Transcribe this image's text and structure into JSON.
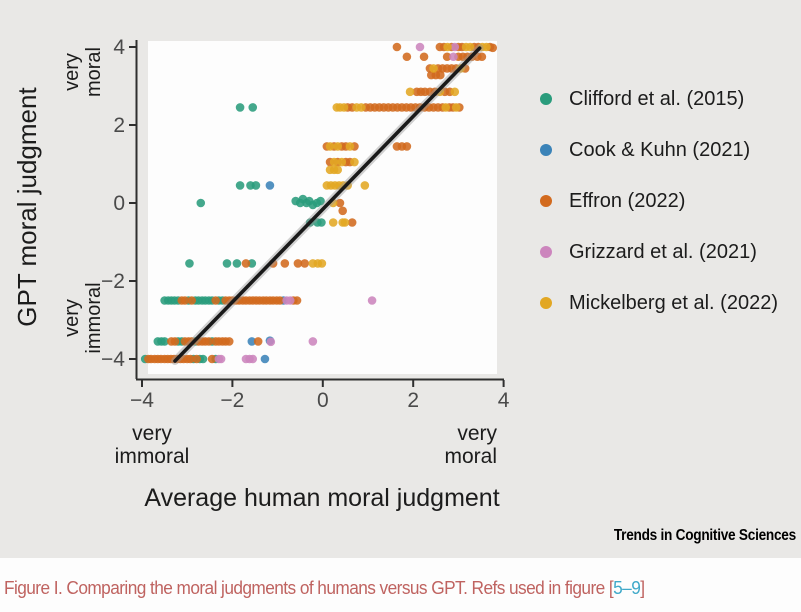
{
  "figure": {
    "caption_prefix": "Figure I. Comparing the moral judgments of humans versus GPT. Refs used in figure [",
    "caption_ref": "5–9",
    "caption_suffix": "]",
    "journal_logo": "Trends in Cognitive Sciences"
  },
  "colors": {
    "background": "#e9e8e6",
    "panel": "#fdfdfd",
    "axis": "#2f2f2f",
    "tick_text": "#4a4a4a",
    "trend_line": "#1a1a1a",
    "trend_halo": "#9a9a9a",
    "caption_text": "#bf6360",
    "caption_link": "#3fa9c9"
  },
  "chart_data": {
    "type": "scatter",
    "title": "",
    "xlabel": "Average human moral judgment",
    "ylabel": "GPT moral judgment",
    "x_ticks": [
      "-4",
      "-2",
      "0",
      "2",
      "4"
    ],
    "x_tick_values": [
      -4,
      -2,
      0,
      2,
      4
    ],
    "y_ticks": [
      "4",
      "2",
      "0",
      "-2",
      "-4"
    ],
    "y_tick_values": [
      4,
      2,
      0,
      -2,
      -4
    ],
    "xlim": [
      -4.1,
      3.95
    ],
    "ylim": [
      -4.4,
      4.15
    ],
    "x_axis_anchor_labels": {
      "left": [
        "very",
        "immoral"
      ],
      "right": [
        "very",
        "moral"
      ]
    },
    "y_axis_anchor_labels": {
      "top": [
        "very",
        "moral"
      ],
      "bottom": [
        "very",
        "immoral"
      ]
    },
    "grid": false,
    "legend_position": "right",
    "trend_line": {
      "x1": -3.27,
      "y1": -4.05,
      "x2": 3.47,
      "y2": 3.97
    },
    "series": [
      {
        "name": "Clifford et al. (2015)",
        "color": "#2a9c7c",
        "points": [
          [
            -1.83,
            2.45
          ],
          [
            -1.55,
            2.45
          ],
          [
            -1.83,
            0.45
          ],
          [
            -1.6,
            0.45
          ],
          [
            -1.48,
            0.45
          ],
          [
            -2.7,
            0.0
          ],
          [
            -0.6,
            0.05
          ],
          [
            -0.5,
            0.0
          ],
          [
            -0.44,
            0.1
          ],
          [
            -0.36,
            0.0
          ],
          [
            -0.3,
            0.05
          ],
          [
            -0.22,
            -0.05
          ],
          [
            -0.13,
            0.0
          ],
          [
            -0.05,
            0.05
          ],
          [
            -0.28,
            -0.5
          ],
          [
            -0.12,
            -0.5
          ],
          [
            -0.03,
            -0.5
          ],
          [
            -2.95,
            -1.55
          ],
          [
            -2.12,
            -1.55
          ],
          [
            -1.9,
            -1.55
          ],
          [
            -1.57,
            -1.55
          ],
          [
            -3.5,
            -2.5
          ],
          [
            -3.42,
            -2.5
          ],
          [
            -3.35,
            -2.5
          ],
          [
            -3.28,
            -2.5
          ],
          [
            -3.2,
            -2.5
          ],
          [
            -2.97,
            -2.5
          ],
          [
            -2.82,
            -2.5
          ],
          [
            -2.75,
            -2.5
          ],
          [
            -2.67,
            -2.5
          ],
          [
            -2.6,
            -2.5
          ],
          [
            -2.52,
            -2.5
          ],
          [
            -2.45,
            -2.5
          ],
          [
            -2.3,
            -2.5
          ],
          [
            -2.22,
            -2.5
          ],
          [
            -3.65,
            -3.55
          ],
          [
            -3.57,
            -3.55
          ],
          [
            -3.5,
            -3.55
          ],
          [
            -3.2,
            -3.55
          ],
          [
            -3.12,
            -3.55
          ],
          [
            -2.82,
            -3.55
          ],
          [
            -2.45,
            -3.55
          ],
          [
            -3.93,
            -4.0
          ],
          [
            -2.86,
            -4.0
          ],
          [
            -2.72,
            -4.0
          ],
          [
            -2.65,
            -4.0
          ],
          [
            -2.37,
            -4.0
          ]
        ]
      },
      {
        "name": "Cook & Kuhn (2021)",
        "color": "#3b83b8",
        "points": [
          [
            -1.17,
            0.45
          ],
          [
            -0.87,
            -2.5
          ],
          [
            -1.57,
            -3.55
          ],
          [
            -1.17,
            -3.53
          ],
          [
            -1.28,
            -4.0
          ]
        ]
      },
      {
        "name": "Effron (2022)",
        "color": "#d26a1e",
        "points": [
          [
            1.64,
            4.0
          ],
          [
            2.59,
            4.0
          ],
          [
            2.68,
            4.0
          ],
          [
            2.85,
            4.0
          ],
          [
            3.0,
            4.0
          ],
          [
            3.08,
            4.0
          ],
          [
            3.35,
            4.0
          ],
          [
            3.44,
            4.0
          ],
          [
            3.7,
            4.0
          ],
          [
            3.76,
            3.98
          ],
          [
            1.86,
            3.75
          ],
          [
            2.24,
            3.75
          ],
          [
            2.75,
            3.75
          ],
          [
            3.0,
            3.75
          ],
          [
            3.1,
            3.75
          ],
          [
            3.2,
            3.75
          ],
          [
            3.3,
            3.75
          ],
          [
            3.42,
            3.75
          ],
          [
            3.52,
            3.75
          ],
          [
            2.37,
            3.45
          ],
          [
            2.55,
            3.45
          ],
          [
            2.65,
            3.45
          ],
          [
            2.75,
            3.45
          ],
          [
            2.85,
            3.45
          ],
          [
            2.95,
            3.45
          ],
          [
            3.15,
            3.45
          ],
          [
            2.4,
            3.28
          ],
          [
            2.5,
            3.28
          ],
          [
            2.6,
            3.28
          ],
          [
            2.08,
            2.85
          ],
          [
            2.17,
            2.85
          ],
          [
            2.26,
            2.85
          ],
          [
            2.37,
            2.85
          ],
          [
            2.48,
            2.85
          ],
          [
            2.7,
            2.85
          ],
          [
            2.81,
            2.85
          ],
          [
            0.55,
            2.45
          ],
          [
            0.65,
            2.45
          ],
          [
            0.95,
            2.45
          ],
          [
            1.05,
            2.45
          ],
          [
            1.15,
            2.45
          ],
          [
            1.25,
            2.45
          ],
          [
            1.35,
            2.45
          ],
          [
            1.45,
            2.45
          ],
          [
            1.55,
            2.45
          ],
          [
            1.65,
            2.45
          ],
          [
            1.75,
            2.45
          ],
          [
            1.85,
            2.45
          ],
          [
            1.95,
            2.45
          ],
          [
            2.05,
            2.45
          ],
          [
            2.15,
            2.45
          ],
          [
            2.25,
            2.45
          ],
          [
            2.35,
            2.45
          ],
          [
            2.45,
            2.45
          ],
          [
            2.55,
            2.45
          ],
          [
            2.65,
            2.45
          ],
          [
            2.8,
            2.45
          ],
          [
            2.88,
            2.45
          ],
          [
            3.02,
            2.45
          ],
          [
            0.09,
            1.45
          ],
          [
            0.25,
            1.45
          ],
          [
            0.42,
            1.45
          ],
          [
            0.51,
            1.45
          ],
          [
            0.7,
            1.45
          ],
          [
            1.64,
            1.45
          ],
          [
            1.75,
            1.45
          ],
          [
            1.86,
            1.45
          ],
          [
            0.16,
            1.05
          ],
          [
            0.33,
            1.05
          ],
          [
            0.51,
            1.05
          ],
          [
            0.6,
            1.05
          ],
          [
            0.38,
            0.0
          ],
          [
            0.44,
            -0.2
          ],
          [
            0.65,
            -0.5
          ],
          [
            -1.7,
            -1.55
          ],
          [
            -1.1,
            -1.55
          ],
          [
            -0.84,
            -1.55
          ],
          [
            -0.55,
            -1.55
          ],
          [
            -0.4,
            -1.55
          ],
          [
            -3.12,
            -2.5
          ],
          [
            -3.05,
            -2.5
          ],
          [
            -2.9,
            -2.5
          ],
          [
            -2.37,
            -2.5
          ],
          [
            -2.15,
            -2.5
          ],
          [
            -2.07,
            -2.5
          ],
          [
            -2.0,
            -2.5
          ],
          [
            -1.92,
            -2.5
          ],
          [
            -1.85,
            -2.5
          ],
          [
            -1.77,
            -2.5
          ],
          [
            -1.7,
            -2.5
          ],
          [
            -1.62,
            -2.5
          ],
          [
            -1.55,
            -2.5
          ],
          [
            -1.47,
            -2.5
          ],
          [
            -1.4,
            -2.5
          ],
          [
            -1.32,
            -2.5
          ],
          [
            -1.25,
            -2.5
          ],
          [
            -1.17,
            -2.5
          ],
          [
            -1.1,
            -2.5
          ],
          [
            -1.02,
            -2.5
          ],
          [
            -0.95,
            -2.5
          ],
          [
            -0.65,
            -2.5
          ],
          [
            -0.57,
            -2.5
          ],
          [
            -3.35,
            -3.55
          ],
          [
            -3.27,
            -3.55
          ],
          [
            -3.05,
            -3.55
          ],
          [
            -2.97,
            -3.55
          ],
          [
            -2.9,
            -3.55
          ],
          [
            -2.75,
            -3.55
          ],
          [
            -2.67,
            -3.55
          ],
          [
            -2.6,
            -3.55
          ],
          [
            -2.52,
            -3.55
          ],
          [
            -2.37,
            -3.55
          ],
          [
            -2.3,
            -3.55
          ],
          [
            -2.22,
            -3.55
          ],
          [
            -2.15,
            -3.55
          ],
          [
            -2.07,
            -3.55
          ],
          [
            -1.43,
            -3.55
          ],
          [
            -3.86,
            -4.0
          ],
          [
            -3.8,
            -4.0
          ],
          [
            -3.72,
            -4.0
          ],
          [
            -3.65,
            -4.0
          ],
          [
            -3.58,
            -4.0
          ],
          [
            -3.5,
            -4.0
          ],
          [
            -3.43,
            -4.0
          ],
          [
            -3.36,
            -4.0
          ],
          [
            -3.29,
            -4.0
          ],
          [
            -3.22,
            -4.0
          ],
          [
            -3.15,
            -4.0
          ],
          [
            -3.08,
            -4.0
          ],
          [
            -3.0,
            -4.0
          ],
          [
            -2.93,
            -4.0
          ],
          [
            -2.79,
            -4.0
          ],
          [
            -2.45,
            -4.0
          ]
        ]
      },
      {
        "name": "Grizzard et al. (2021)",
        "color": "#cc85bd",
        "points": [
          [
            2.15,
            4.0
          ],
          [
            2.92,
            4.0
          ],
          [
            2.89,
            3.75
          ],
          [
            1.09,
            -2.5
          ],
          [
            -0.8,
            -2.5
          ],
          [
            -0.72,
            -2.5
          ],
          [
            -0.22,
            -3.55
          ],
          [
            -1.15,
            -3.56
          ],
          [
            -2.3,
            -4.0
          ],
          [
            -2.25,
            -4.0
          ],
          [
            -1.7,
            -4.0
          ],
          [
            -1.62,
            -4.0
          ],
          [
            -1.55,
            -4.0
          ]
        ]
      },
      {
        "name": "Mickelberg et al. (2022)",
        "color": "#e2a723",
        "points": [
          [
            2.76,
            4.0
          ],
          [
            3.17,
            4.0
          ],
          [
            3.26,
            4.0
          ],
          [
            3.53,
            4.0
          ],
          [
            3.62,
            4.0
          ],
          [
            2.45,
            3.45
          ],
          [
            3.05,
            3.45
          ],
          [
            1.93,
            2.85
          ],
          [
            2.59,
            2.85
          ],
          [
            2.92,
            2.85
          ],
          [
            0.31,
            2.45
          ],
          [
            0.38,
            2.45
          ],
          [
            0.47,
            2.45
          ],
          [
            0.75,
            2.45
          ],
          [
            0.85,
            2.45
          ],
          [
            2.72,
            2.45
          ],
          [
            2.95,
            2.45
          ],
          [
            0.16,
            1.45
          ],
          [
            0.33,
            1.45
          ],
          [
            0.6,
            1.45
          ],
          [
            0.25,
            1.05
          ],
          [
            0.42,
            1.05
          ],
          [
            0.7,
            1.05
          ],
          [
            0.16,
            0.85
          ],
          [
            0.25,
            0.85
          ],
          [
            0.33,
            0.85
          ],
          [
            0.09,
            0.45
          ],
          [
            0.18,
            0.45
          ],
          [
            0.27,
            0.45
          ],
          [
            0.36,
            0.45
          ],
          [
            0.45,
            0.45
          ],
          [
            0.55,
            0.45
          ],
          [
            0.93,
            0.45
          ],
          [
            0.23,
            0.0
          ],
          [
            0.23,
            -0.5
          ],
          [
            0.44,
            -0.5
          ],
          [
            0.49,
            -0.5
          ],
          [
            -0.22,
            -1.55
          ],
          [
            -0.11,
            -1.55
          ],
          [
            -0.02,
            -1.55
          ]
        ]
      }
    ]
  }
}
